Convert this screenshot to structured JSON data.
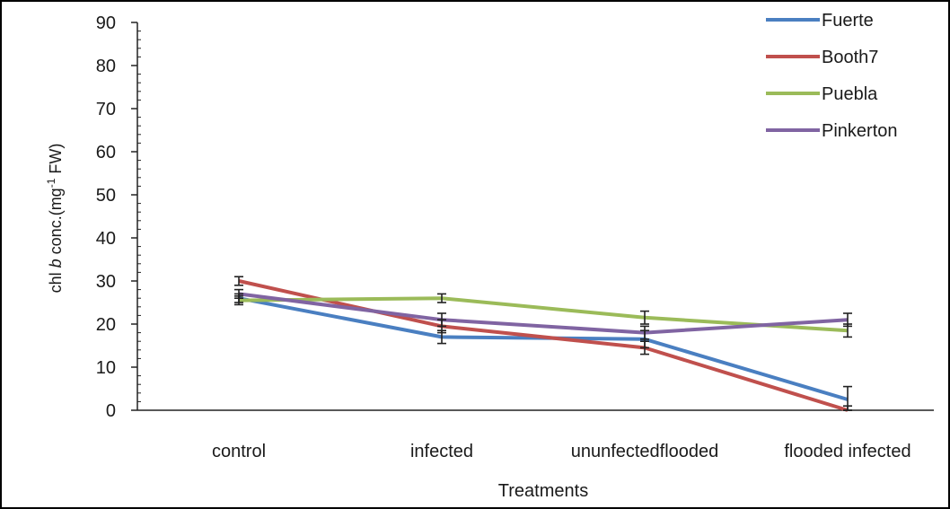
{
  "chart_data": {
    "type": "line",
    "xlabel": "Treatments",
    "ylabel_parts": [
      "chl ",
      "b",
      " conc.(mg",
      "-1",
      " FW)"
    ],
    "ylim": [
      0,
      90
    ],
    "yticks": [
      0,
      10,
      20,
      30,
      40,
      50,
      60,
      70,
      80,
      90
    ],
    "categories": [
      "control",
      "infected",
      "ununfectedflooded",
      "flooded infected"
    ],
    "legend_position": "top-right",
    "error_bars": true,
    "series": [
      {
        "name": "Fuerte",
        "color": "#4a7fc1",
        "values": [
          26,
          17,
          16.5,
          2.5
        ],
        "err": [
          1,
          1.5,
          2,
          3
        ]
      },
      {
        "name": "Booth7",
        "color": "#c0504d",
        "values": [
          30,
          19.5,
          14.5,
          0
        ],
        "err": [
          1,
          1.5,
          1.5,
          1
        ]
      },
      {
        "name": "Puebla",
        "color": "#9bbb59",
        "values": [
          25.5,
          26,
          21.5,
          18.5
        ],
        "err": [
          1,
          1,
          1.5,
          1.5
        ]
      },
      {
        "name": "Pinkerton",
        "color": "#8064a2",
        "values": [
          27,
          21,
          18,
          21
        ],
        "err": [
          1,
          1.5,
          1.5,
          1.5
        ]
      }
    ]
  }
}
